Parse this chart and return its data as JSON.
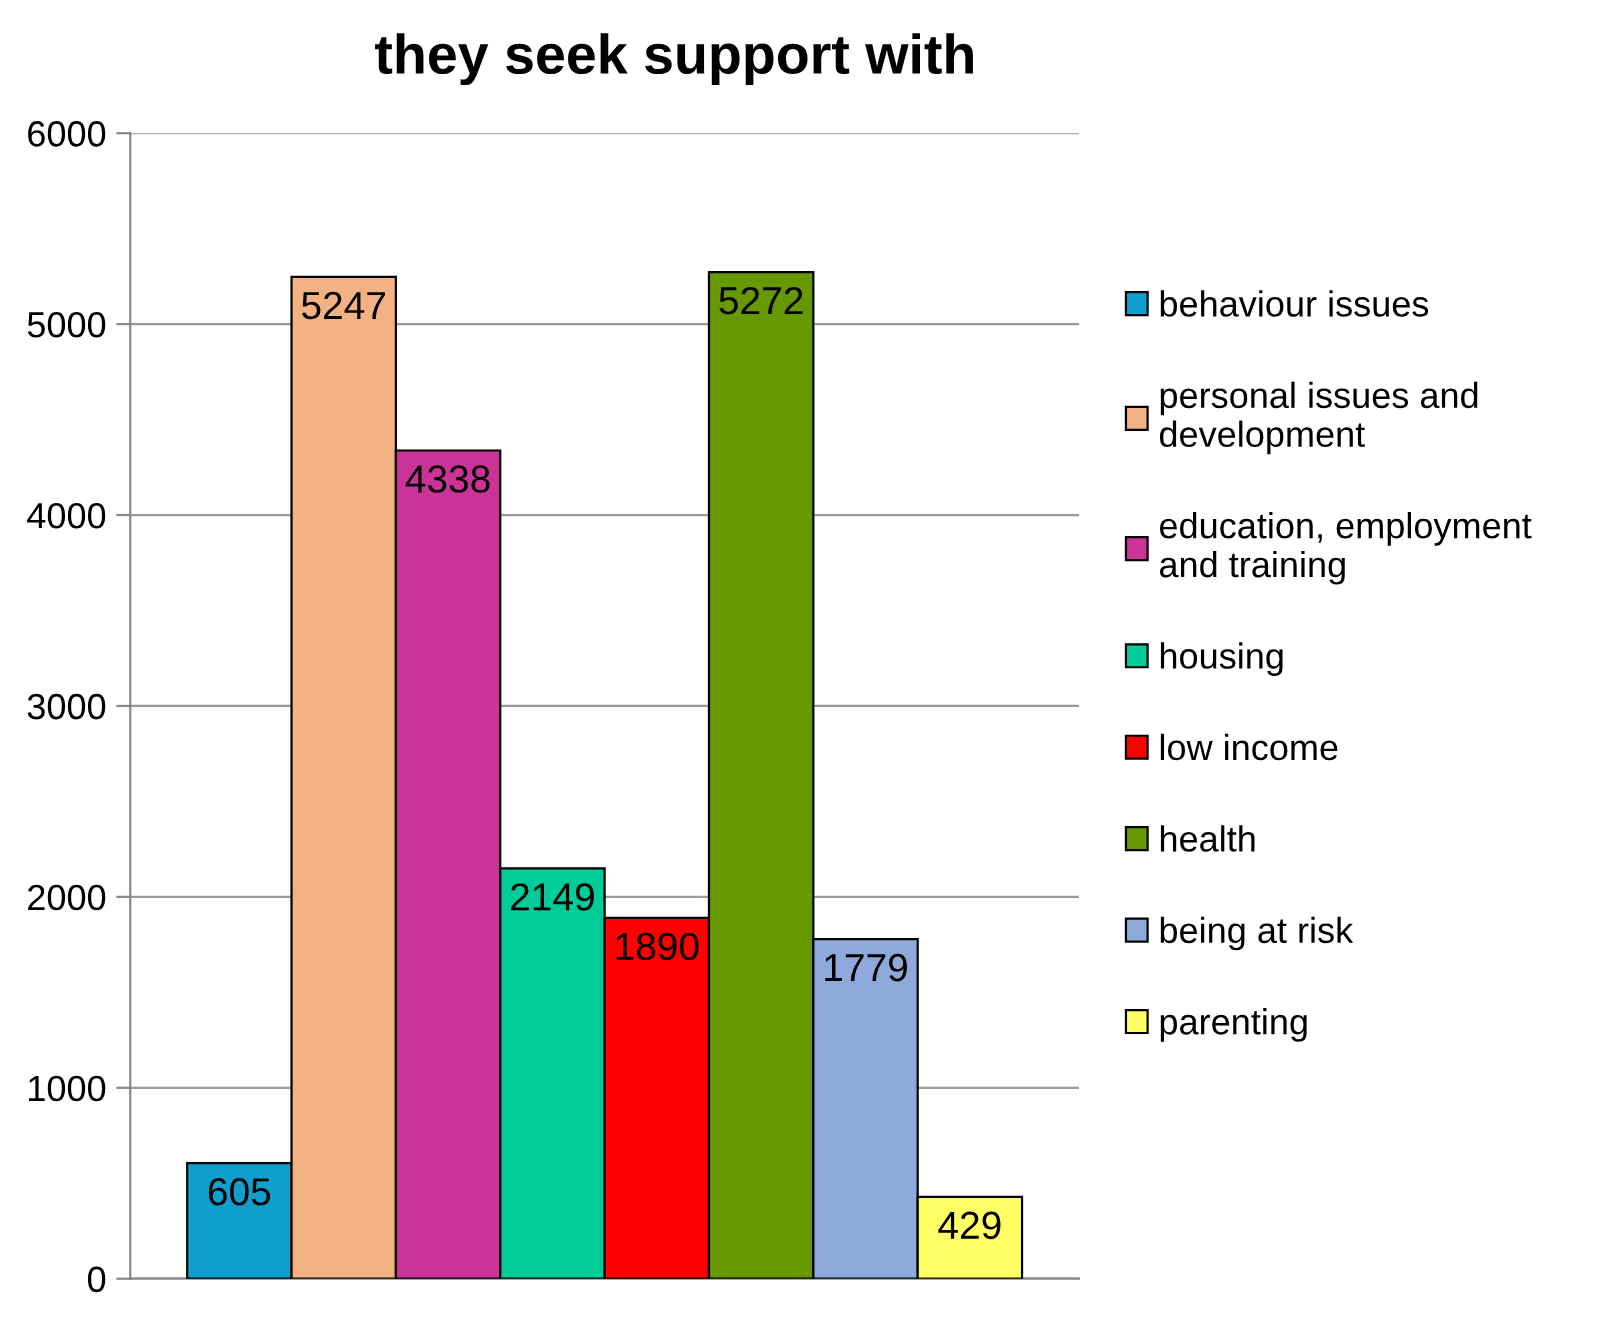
{
  "chart_data": {
    "type": "bar",
    "title": "they seek support with",
    "categories": [
      null
    ],
    "series": [
      {
        "name": "behaviour issues",
        "color": "#0f9fcf",
        "values": [
          605
        ]
      },
      {
        "name": "personal issues and\ndevelopment",
        "color": "#f4b183",
        "values": [
          5247
        ]
      },
      {
        "name": "education, employment\nand training",
        "color": "#cc3399",
        "values": [
          4338
        ]
      },
      {
        "name": "housing",
        "color": "#00cc99",
        "values": [
          2149
        ]
      },
      {
        "name": "low income",
        "color": "#ff0000",
        "values": [
          1890
        ]
      },
      {
        "name": "health",
        "color": "#669900",
        "values": [
          5272
        ]
      },
      {
        "name": "being at risk",
        "color": "#8eaadb",
        "values": [
          1779
        ]
      },
      {
        "name": "parenting",
        "color": "#ffff66",
        "values": [
          429
        ]
      }
    ],
    "ylim": [
      0,
      6000
    ],
    "yticks": [
      0,
      1000,
      2000,
      3000,
      4000,
      5000,
      6000
    ],
    "grid": "y",
    "legend": "right",
    "data_labels": true
  }
}
